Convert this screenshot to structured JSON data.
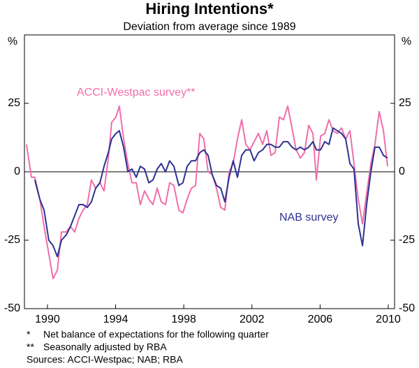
{
  "chart_data": {
    "type": "line",
    "title": "Hiring Intentions*",
    "subtitle": "Deviation from average since 1989",
    "y_unit_left": "%",
    "y_unit_right": "%",
    "x": [
      1988.77,
      1989.06,
      1989.26,
      1989.55,
      1989.8,
      1990.08,
      1990.33,
      1990.58,
      1990.82,
      1991.11,
      1991.35,
      1991.6,
      1991.85,
      1992.09,
      1992.34,
      1992.58,
      1992.83,
      1993.08,
      1993.32,
      1993.57,
      1993.77,
      1994.02,
      1994.22,
      1994.47,
      1994.72,
      1994.96,
      1995.21,
      1995.45,
      1995.7,
      1995.95,
      1996.19,
      1996.44,
      1996.68,
      1996.93,
      1997.17,
      1997.42,
      1997.71,
      1997.95,
      1998.2,
      1998.45,
      1998.69,
      1998.94,
      1999.18,
      1999.43,
      1999.67,
      1999.92,
      2000.17,
      2000.41,
      2000.66,
      2000.9,
      2001.15,
      2001.4,
      2001.64,
      2001.89,
      2002.13,
      2002.38,
      2002.63,
      2002.87,
      2003.12,
      2003.36,
      2003.61,
      2003.85,
      2004.1,
      2004.35,
      2004.59,
      2004.84,
      2005.08,
      2005.33,
      2005.58,
      2005.78,
      2006.03,
      2006.27,
      2006.52,
      2006.76,
      2007.01,
      2007.26,
      2007.5,
      2007.75,
      2007.99,
      2008.24,
      2008.49,
      2008.73,
      2008.98,
      2009.22,
      2009.47,
      2009.72,
      2009.96
    ],
    "series": [
      {
        "name": "ACCI-Westpac survey**",
        "color": "#f06eaa",
        "values": [
          10,
          -2,
          -2,
          -10,
          -20,
          -30,
          -39,
          -36,
          -22,
          -22,
          -20,
          -22,
          -17,
          -14,
          -12,
          -3,
          -6,
          -4,
          -7,
          5,
          18,
          20,
          24,
          12,
          3,
          -4,
          -4,
          -12,
          -7,
          -10,
          -12,
          -6,
          -11,
          -12,
          -4,
          -5,
          -14,
          -15,
          -10,
          -6,
          -5,
          14,
          12,
          0,
          -1,
          -6,
          -13,
          -14,
          0,
          3,
          12,
          19,
          10,
          8,
          11,
          14,
          10,
          15,
          6,
          7,
          20,
          19,
          24,
          16,
          8,
          5,
          7,
          17,
          14,
          -3,
          13,
          14,
          19,
          15,
          14,
          16,
          12,
          15,
          3,
          -10,
          -19,
          -8,
          3,
          10,
          22,
          15,
          2
        ]
      },
      {
        "name": "NAB survey",
        "color": "#2e3192",
        "values": [
          null,
          null,
          -3,
          -10,
          -14,
          -25,
          -27,
          -31,
          -25,
          -23,
          -20,
          -16,
          -12,
          -12,
          -13,
          -11,
          -6,
          -4,
          2,
          7,
          12,
          14,
          15,
          9,
          0,
          1,
          -2,
          2,
          1,
          -4,
          -3,
          1,
          3,
          0,
          4,
          2,
          -5,
          -4,
          2,
          4,
          4,
          7,
          8,
          6,
          -1,
          -5,
          -6,
          -11,
          -2,
          4,
          -2,
          6,
          8,
          8,
          4,
          7,
          8,
          10,
          10,
          9,
          9,
          11,
          11,
          9,
          8,
          9,
          8,
          9,
          11,
          8,
          8,
          11,
          10,
          16,
          15,
          14,
          12,
          3,
          1,
          -19,
          -27,
          -12,
          0,
          9,
          9,
          6,
          5
        ]
      }
    ],
    "xlim": [
      1988.65,
      2010.37
    ],
    "xticks": [
      1990,
      1994,
      1998,
      2002,
      2006,
      2010
    ],
    "ylim": [
      -50,
      50
    ],
    "yticks": [
      -50,
      -25,
      0,
      25
    ],
    "footnotes": [
      {
        "symbol": "*",
        "text": "Net balance of expectations for the following quarter"
      },
      {
        "symbol": "**",
        "text": "Seasonally adjusted by RBA"
      }
    ],
    "sources": "Sources: ACCI-Westpac; NAB; RBA"
  }
}
